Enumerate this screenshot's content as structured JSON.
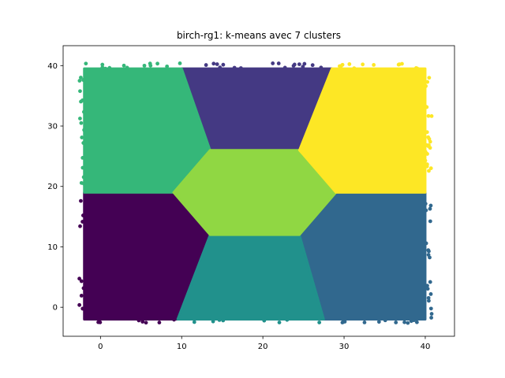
{
  "chart_data": {
    "type": "scatter",
    "title": "birch-rg1: k-means avec 7 clusters",
    "xlabel": "",
    "ylabel": "",
    "xlim": [
      -4.6,
      43.6
    ],
    "ylim": [
      -4.8,
      43.3
    ],
    "xticks": [
      0,
      10,
      20,
      30,
      40
    ],
    "yticks": [
      0,
      10,
      20,
      30,
      40
    ],
    "grid": false,
    "legend": "none",
    "clusters": [
      {
        "id": 0,
        "color": "#440154",
        "region": [
          [
            -2,
            -2
          ],
          [
            9.5,
            -2
          ],
          [
            13.5,
            12
          ],
          [
            9,
            19
          ],
          [
            -2,
            19
          ]
        ]
      },
      {
        "id": 1,
        "color": "#443983",
        "region": [
          [
            10,
            39.5
          ],
          [
            28.5,
            39.5
          ],
          [
            24.5,
            26
          ],
          [
            13.5,
            26
          ]
        ]
      },
      {
        "id": 2,
        "color": "#31688e",
        "region": [
          [
            24.5,
            12
          ],
          [
            29,
            19
          ],
          [
            40,
            19
          ],
          [
            40,
            -2
          ],
          [
            27.5,
            -2
          ]
        ]
      },
      {
        "id": 3,
        "color": "#21918c",
        "region": [
          [
            9.5,
            -2
          ],
          [
            27.5,
            -2
          ],
          [
            24.5,
            12
          ],
          [
            13.5,
            12
          ]
        ]
      },
      {
        "id": 4,
        "color": "#35b779",
        "region": [
          [
            -2,
            39.5
          ],
          [
            10,
            39.5
          ],
          [
            13.5,
            26
          ],
          [
            9,
            19
          ],
          [
            -2,
            19
          ]
        ]
      },
      {
        "id": 5,
        "color": "#90d743",
        "region": [
          [
            9,
            19
          ],
          [
            13.5,
            12
          ],
          [
            24.5,
            12
          ],
          [
            29,
            19
          ],
          [
            24.5,
            26
          ],
          [
            13.5,
            26
          ]
        ]
      },
      {
        "id": 6,
        "color": "#fde725",
        "region": [
          [
            28.5,
            39.5
          ],
          [
            40,
            39.5
          ],
          [
            40,
            19
          ],
          [
            29,
            19
          ],
          [
            24.5,
            26
          ]
        ]
      }
    ]
  }
}
